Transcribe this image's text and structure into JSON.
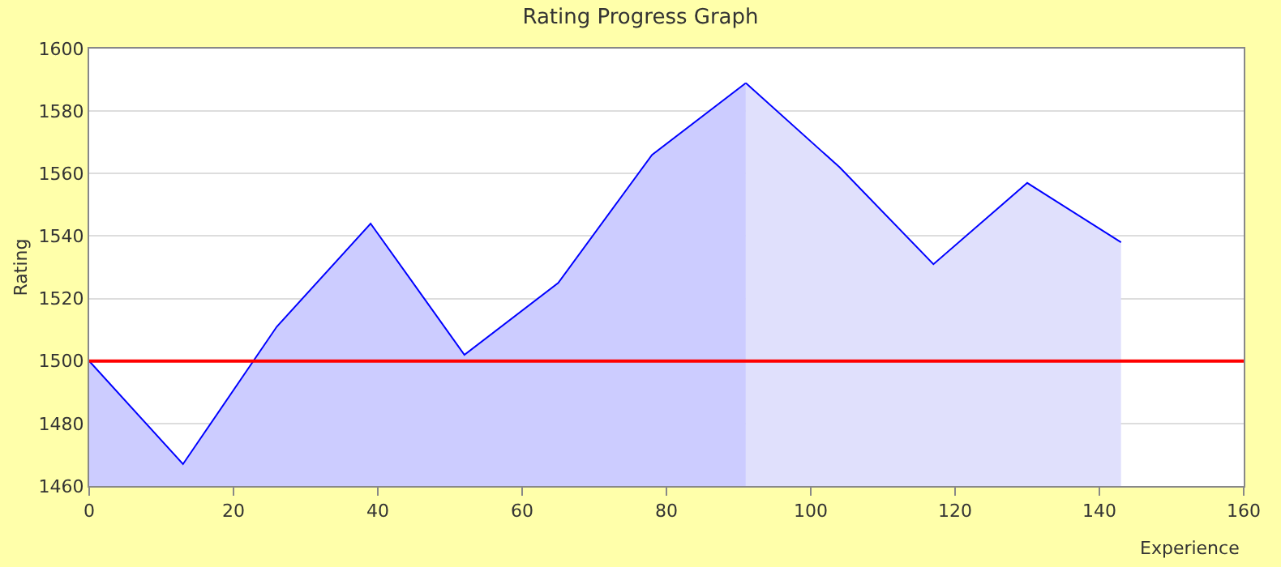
{
  "chart_data": {
    "type": "area",
    "title": "Rating Progress Graph",
    "xlabel": "Experience",
    "ylabel": "Rating",
    "series": [
      {
        "color": "#ccccff",
        "x": [
          0,
          13,
          26,
          39,
          52,
          65,
          78,
          91
        ],
        "values": [
          1500,
          1467,
          1511,
          1544,
          1502,
          1525,
          1566,
          1589
        ]
      },
      {
        "color": "#e0e0fc",
        "x": [
          91,
          104,
          117,
          130,
          143
        ],
        "values": [
          1589,
          1562,
          1531,
          1557,
          1538
        ]
      }
    ],
    "xlim": [
      0,
      160
    ],
    "xticks": [
      0,
      20,
      40,
      60,
      80,
      100,
      120,
      140,
      160
    ],
    "ylim": [
      1460,
      1600
    ],
    "yticks": [
      1460,
      1480,
      1500,
      1520,
      1540,
      1560,
      1580,
      1600
    ],
    "ref_lines": [
      {
        "axis": "y",
        "value": 1500,
        "color": "#ff0000"
      }
    ],
    "grid": "y"
  }
}
